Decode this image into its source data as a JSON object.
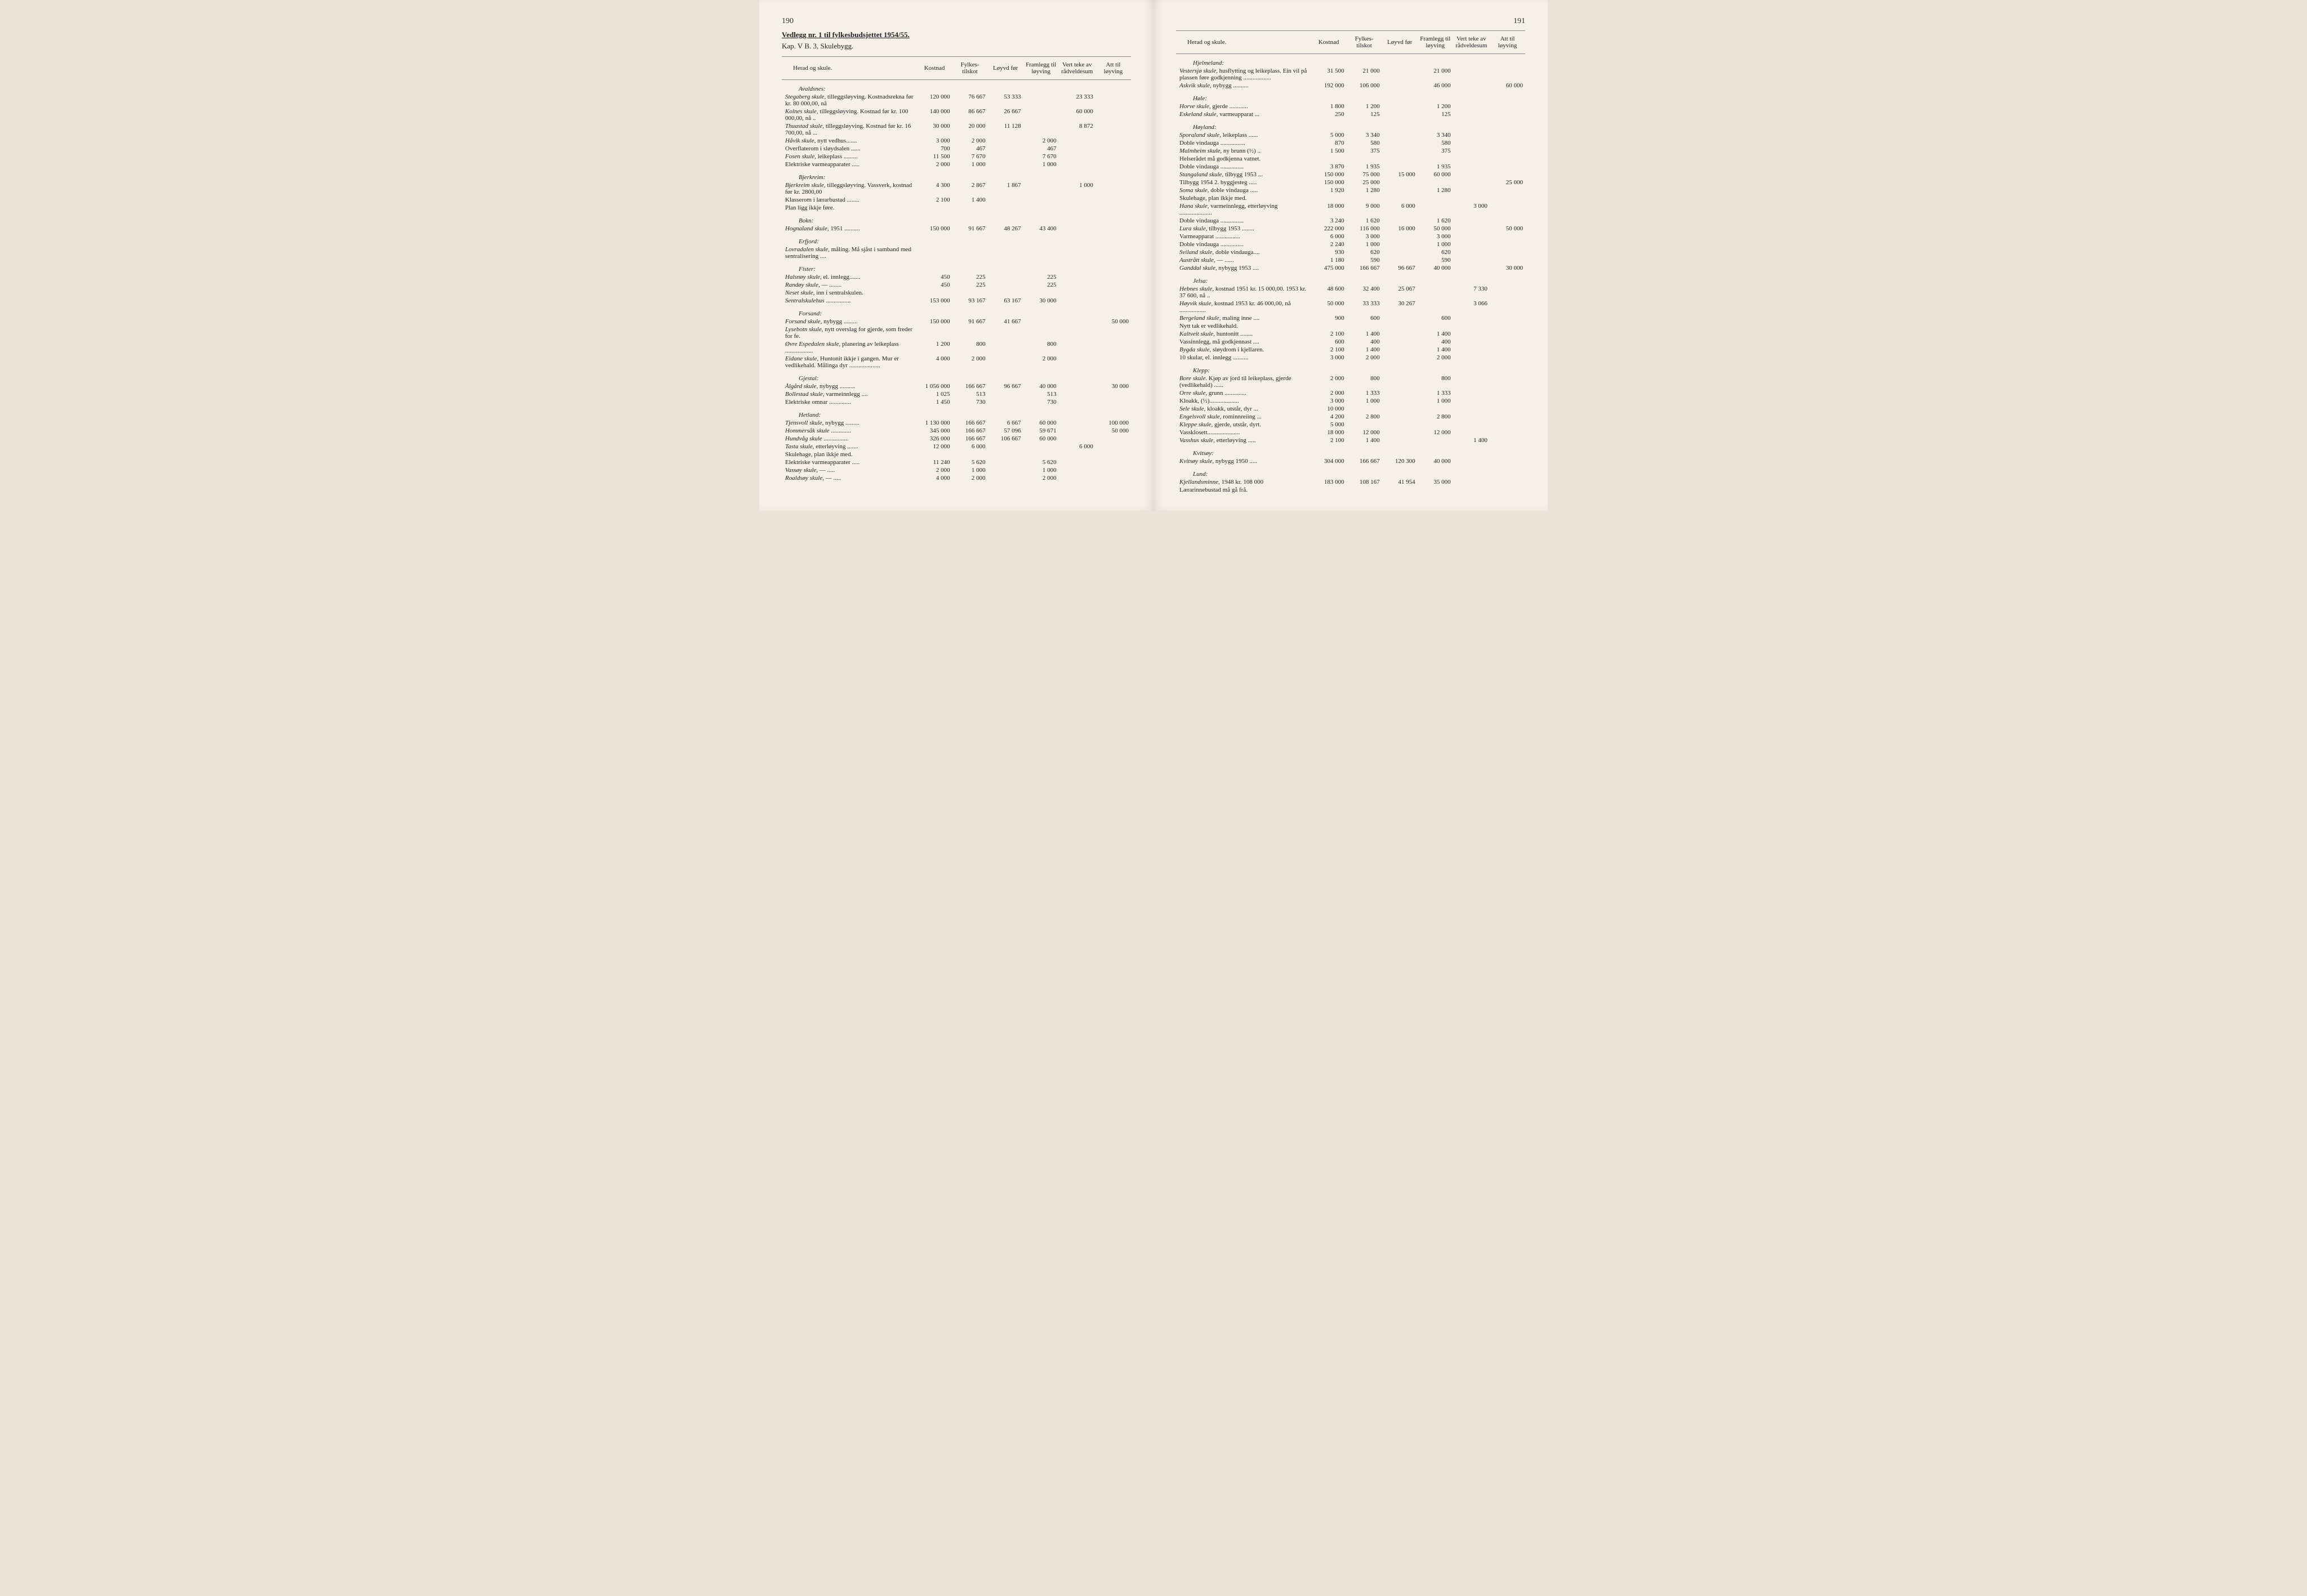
{
  "left": {
    "pageNumber": "190",
    "attachment": "Vedlegg nr. 1 til fylkesbudsjettet 1954/55.",
    "chapter": "Kap. V B. 3, Skulebygg.",
    "headers": [
      "Herad og skule.",
      "Kostnad",
      "Fylkes-\ntilskot",
      "Løyvd\nfør",
      "Framlegg\ntil løyving",
      "Vert teke av\nrådveldesum",
      "Att til\nløyving"
    ],
    "rows": [
      {
        "section": "Avaldsnes:"
      },
      {
        "desc": "Stegaberg skule, tilleggsløyving. Kostnadsrekna før kr. 80 000,00, nå",
        "italicPrefix": "Stegaberg skule,",
        "vals": [
          "120 000",
          "76 667",
          "53 333",
          "",
          "23 333",
          ""
        ]
      },
      {
        "desc": "Kolnes skule, tilleggsløyving. Kostnad før kr. 100 000,00, nå ..",
        "italicPrefix": "Kolnes skule,",
        "vals": [
          "140 000",
          "86 667",
          "26 667",
          "",
          "60 000",
          ""
        ]
      },
      {
        "desc": "Thuastad skule, tilleggsløyving. Kostnad før kr. 16 700,00, nå ...",
        "italicPrefix": "Thuastad skule,",
        "vals": [
          "30 000",
          "20 000",
          "11 128",
          "",
          "8 872",
          ""
        ]
      },
      {
        "desc": "Håvik skule, nytt vedhus.......",
        "italicPrefix": "Håvik skule,",
        "vals": [
          "3 000",
          "2 000",
          "",
          "2 000",
          "",
          ""
        ]
      },
      {
        "desc": "Overflaterom i sløydsalen ......",
        "vals": [
          "700",
          "467",
          "",
          "467",
          "",
          ""
        ]
      },
      {
        "desc": "Fosen skule, leikeplass .........",
        "italicPrefix": "Fosen skule,",
        "vals": [
          "11 500",
          "7 670",
          "",
          "7 670",
          "",
          ""
        ]
      },
      {
        "desc": "Elektriske varmeapparater .....",
        "vals": [
          "2 000",
          "1 000",
          "",
          "1 000",
          "",
          ""
        ]
      },
      {
        "section": "Bjerkreim:"
      },
      {
        "desc": "Bjerkreim skule, tilleggsløyving. Vassverk, kostnad før kr. 2800,00",
        "italicPrefix": "Bjerkreim skule,",
        "vals": [
          "4 300",
          "2 867",
          "1 867",
          "",
          "1 000",
          ""
        ]
      },
      {
        "desc": "Klasserom i lærarbustad ........",
        "vals": [
          "2 100",
          "1 400",
          "",
          "",
          "",
          ""
        ]
      },
      {
        "desc": "Plan ligg ikkje føre.",
        "vals": [
          "",
          "",
          "",
          "",
          "",
          ""
        ]
      },
      {
        "section": "Bokn:"
      },
      {
        "desc": "Hognaland skule, 1951 ..........",
        "italicPrefix": "Hognaland skule,",
        "vals": [
          "150 000",
          "91 667",
          "48 267",
          "43 400",
          "",
          ""
        ]
      },
      {
        "section": "Erfjord:"
      },
      {
        "desc": "Lovradalen skule, måling. Må sjåst i samband med sentralisering ....",
        "italicPrefix": "Lovradalen skule,",
        "vals": [
          "",
          "",
          "",
          "",
          "",
          ""
        ]
      },
      {
        "section": "Fister:"
      },
      {
        "desc": "Halsnøy skule, el. innlegg.......",
        "italicPrefix": "Halsnøy skule,",
        "vals": [
          "450",
          "225",
          "",
          "225",
          "",
          ""
        ]
      },
      {
        "desc": "Randøy skule,     —     ........",
        "italicPrefix": "Randøy skule,",
        "vals": [
          "450",
          "225",
          "",
          "225",
          "",
          ""
        ]
      },
      {
        "desc": "Neset skule, inn i sentralskulen.",
        "italicPrefix": "Neset skule,",
        "vals": [
          "",
          "",
          "",
          "",
          "",
          ""
        ]
      },
      {
        "desc": "Sentralskulehus ................",
        "italicPrefix": "Sentralskulehus",
        "vals": [
          "153 000",
          "93 167",
          "63 167",
          "30 000",
          "",
          ""
        ]
      },
      {
        "section": "Forsand:"
      },
      {
        "desc": "Forsand skule, nybygg .........",
        "italicPrefix": "Forsand skule,",
        "vals": [
          "150 000",
          "91 667",
          "41 667",
          "",
          "",
          "50 000"
        ]
      },
      {
        "desc": "Lysebotn skule, nytt overslag for gjerde, som freder for fe.",
        "italicPrefix": "Lysebotn skule,",
        "vals": [
          "",
          "",
          "",
          "",
          "",
          ""
        ]
      },
      {
        "desc": "Øvre Espedalen skule, planering av leikeplass ..................",
        "italicPrefix": "Øvre Espedalen skule,",
        "vals": [
          "1 200",
          "800",
          "",
          "800",
          "",
          ""
        ]
      },
      {
        "desc": "Eidane skule, Huntonit ikkje i gangen. Mur er vedlikehald. Målinga dyr ....................",
        "italicPrefix": "Eidane skule,",
        "vals": [
          "4 000",
          "2 000",
          "",
          "2 000",
          "",
          ""
        ]
      },
      {
        "section": "Gjestal:"
      },
      {
        "desc": "Ålgård skule, nybygg ..........",
        "italicPrefix": "Ålgård skule,",
        "vals": [
          "1 056 000",
          "166 667",
          "96 667",
          "40 000",
          "",
          "30 000"
        ]
      },
      {
        "desc": "Bollestad skule, varmeinnlegg ....",
        "italicPrefix": "Bollestad skule,",
        "vals": [
          "1 025",
          "513",
          "",
          "513",
          "",
          ""
        ]
      },
      {
        "desc": "Elektriske omnar ..............",
        "vals": [
          "1 450",
          "730",
          "",
          "730",
          "",
          ""
        ]
      },
      {
        "section": "Hetland:"
      },
      {
        "desc": "Tjensvoll skule, nybygg .........",
        "italicPrefix": "Tjensvoll skule,",
        "vals": [
          "1 130 000",
          "166 667",
          "6 667",
          "60 000",
          "",
          "100 000"
        ]
      },
      {
        "desc": "Hommersåk skule .............",
        "italicPrefix": "Hommersåk skule",
        "vals": [
          "345 000",
          "166 667",
          "57 096",
          "59 671",
          "",
          "50 000"
        ]
      },
      {
        "desc": "Hundvåg skule ................",
        "italicPrefix": "Hundvåg skule",
        "vals": [
          "326 000",
          "166 667",
          "106 667",
          "60 000",
          "",
          ""
        ]
      },
      {
        "desc": "Tasta skule, etterløyving .......",
        "italicPrefix": "Tasta skule,",
        "vals": [
          "12 000",
          "6 000",
          "",
          "",
          "6 000",
          ""
        ]
      },
      {
        "desc": "Skulehage, plan ikkje med.",
        "vals": [
          "",
          "",
          "",
          "",
          "",
          ""
        ]
      },
      {
        "desc": "Elektriske varmeapparater .....",
        "vals": [
          "11 240",
          "5 620",
          "",
          "5 620",
          "",
          ""
        ]
      },
      {
        "desc": "Vassøy skule,      —      .....",
        "italicPrefix": "Vassøy skule,",
        "vals": [
          "2 000",
          "1 000",
          "",
          "1 000",
          "",
          ""
        ]
      },
      {
        "desc": "Roaldsøy skule,    —      .....",
        "italicPrefix": "Roaldsøy skule,",
        "vals": [
          "4 000",
          "2 000",
          "",
          "2 000",
          "",
          ""
        ]
      }
    ]
  },
  "right": {
    "pageNumber": "191",
    "headers": [
      "Herad og skule.",
      "Kostnad",
      "Fylkes-\ntilskot",
      "Løyvd\nfør",
      "Framlegg\ntil løyving",
      "Vert teke av\nrådveldesum",
      "Att til\nløyving"
    ],
    "rows": [
      {
        "section": "Hjelmeland:"
      },
      {
        "desc": "Vestersjø skule, husflytting og leikeplass. Ein vil på plassen føre godkjenning ..................",
        "italicPrefix": "Vestersjø skule,",
        "vals": [
          "31 500",
          "21 000",
          "",
          "21 000",
          "",
          ""
        ]
      },
      {
        "desc": "Askvik skule, nybygg ..........",
        "italicPrefix": "Askvik skule,",
        "vals": [
          "192 000",
          "106 000",
          "",
          "46 000",
          "",
          "60 000"
        ]
      },
      {
        "section": "Høle:"
      },
      {
        "desc": "Horve skule, gjerde ............",
        "italicPrefix": "Horve skule,",
        "vals": [
          "1 800",
          "1 200",
          "",
          "1 200",
          "",
          ""
        ]
      },
      {
        "desc": "Eskeland skule, varmeapparat ...",
        "italicPrefix": "Eskeland skule,",
        "vals": [
          "250",
          "125",
          "",
          "125",
          "",
          ""
        ]
      },
      {
        "section": "Høyland:"
      },
      {
        "desc": "Sporaland skule, leikeplass ......",
        "italicPrefix": "Sporaland skule,",
        "vals": [
          "5 000",
          "3 340",
          "",
          "3 340",
          "",
          ""
        ]
      },
      {
        "desc": "Doble vindauga ................",
        "vals": [
          "870",
          "580",
          "",
          "580",
          "",
          ""
        ]
      },
      {
        "desc": "Malmheim skule, ny brunn (½) ..",
        "italicPrefix": "Malmheim skule,",
        "vals": [
          "1 500",
          "375",
          "",
          "375",
          "",
          ""
        ]
      },
      {
        "desc": "Helserådet må godkjenna vatnet.",
        "vals": [
          "",
          "",
          "",
          "",
          "",
          ""
        ]
      },
      {
        "desc": "Doble vindauga ...............",
        "vals": [
          "3 870",
          "1 935",
          "",
          "1 935",
          "",
          ""
        ]
      },
      {
        "desc": "Stangaland skule, tilbygg 1953 ...",
        "italicPrefix": "Stangaland skule,",
        "vals": [
          "150 000",
          "75 000",
          "15 000",
          "60 000",
          "",
          ""
        ]
      },
      {
        "desc": "Tilbygg 1954 2. byggjesteg .....",
        "vals": [
          "150 000",
          "25 000",
          "",
          "",
          "",
          "25 000"
        ]
      },
      {
        "desc": "Soma skule, doble vindauga .....",
        "italicPrefix": "Soma skule,",
        "vals": [
          "1 920",
          "1 280",
          "",
          "1 280",
          "",
          ""
        ]
      },
      {
        "desc": "Skulehage, plan ikkje med.",
        "vals": [
          "",
          "",
          "",
          "",
          "",
          ""
        ]
      },
      {
        "desc": "Hana skule, varmeinnlegg, etterløyving .....................",
        "italicPrefix": "Hana skule,",
        "vals": [
          "18 000",
          "9 000",
          "6 000",
          "",
          "3 000",
          ""
        ]
      },
      {
        "desc": "Doble vindauga ...............",
        "vals": [
          "3 240",
          "1 620",
          "",
          "1 620",
          "",
          ""
        ]
      },
      {
        "desc": "Lura skule, tilbygg 1953 ........",
        "italicPrefix": "Lura skule,",
        "vals": [
          "222 000",
          "116 000",
          "16 000",
          "50 000",
          "",
          "50 000"
        ]
      },
      {
        "desc": "Varmeapparat ................",
        "vals": [
          "6 000",
          "3 000",
          "",
          "3 000",
          "",
          ""
        ]
      },
      {
        "desc": "Doble vindauga ...............",
        "vals": [
          "2 240",
          "1 000",
          "",
          "1 000",
          "",
          ""
        ]
      },
      {
        "desc": "Sviland skule, doble vindauga....",
        "italicPrefix": "Sviland skule,",
        "vals": [
          "930",
          "620",
          "",
          "620",
          "",
          ""
        ]
      },
      {
        "desc": "Austrått skule,     —     ......",
        "italicPrefix": "Austrått skule,",
        "vals": [
          "1 180",
          "590",
          "",
          "590",
          "",
          ""
        ]
      },
      {
        "desc": "Ganddal skule, nybygg 1953 ....",
        "italicPrefix": "Ganddal skule,",
        "vals": [
          "475 000",
          "166 667",
          "96 667",
          "40 000",
          "",
          "30 000"
        ]
      },
      {
        "section": "Jelsa:"
      },
      {
        "desc": "Hebnes skule, kostnad 1951 kr. 15 000,00. 1953 kr. 37 600, nå ..",
        "italicPrefix": "Hebnes skule,",
        "vals": [
          "48 600",
          "32 400",
          "25 067",
          "",
          "7 330",
          ""
        ]
      },
      {
        "desc": "Høyvik skule, kostnad 1953 kr. 46 000,00, nå .................",
        "italicPrefix": "Høyvik skule,",
        "vals": [
          "50 000",
          "33 333",
          "30 267",
          "",
          "3 066",
          ""
        ]
      },
      {
        "desc": "Bergeland skule, maling inne ....",
        "italicPrefix": "Bergeland skule,",
        "vals": [
          "900",
          "600",
          "",
          "600",
          "",
          ""
        ]
      },
      {
        "desc": "Nytt tak er vedlikehald.",
        "vals": [
          "",
          "",
          "",
          "",
          "",
          ""
        ]
      },
      {
        "desc": "Kaltveit skule, huntonitt ........",
        "italicPrefix": "Kaltveit skule,",
        "vals": [
          "2 100",
          "1 400",
          "",
          "1 400",
          "",
          ""
        ]
      },
      {
        "desc": "Vassinnlegg, må godkjennast ....",
        "vals": [
          "600",
          "400",
          "",
          "400",
          "",
          ""
        ]
      },
      {
        "desc": "Bygda skule, sløydrom i kjellaren.",
        "italicPrefix": "Bygda skule,",
        "vals": [
          "2 100",
          "1 400",
          "",
          "1 400",
          "",
          ""
        ]
      },
      {
        "desc": "10 skular, el. innlegg ..........",
        "vals": [
          "3 000",
          "2 000",
          "",
          "2 000",
          "",
          ""
        ]
      },
      {
        "section": "Klepp:"
      },
      {
        "desc": "Bore skule. Kjøp av jord til leikeplass, gjerde (vedlikehald) ......",
        "italicPrefix": "Bore skule.",
        "vals": [
          "2 000",
          "800",
          "",
          "800",
          "",
          ""
        ]
      },
      {
        "desc": "Orre skule, grunn ..............",
        "italicPrefix": "Orre skule,",
        "vals": [
          "2 000",
          "1 333",
          "",
          "1 333",
          "",
          ""
        ]
      },
      {
        "desc": "Kloakk, (½)...................",
        "vals": [
          "3 000",
          "1 000",
          "",
          "1 000",
          "",
          ""
        ]
      },
      {
        "desc": "Sele skule, kloakk, utstår, dyr ...",
        "italicPrefix": "Sele skule,",
        "vals": [
          "10 000",
          "",
          "",
          "",
          "",
          ""
        ]
      },
      {
        "desc": "Engelsvoll skule, rominnreiing ...",
        "italicPrefix": "Engelsvoll skule,",
        "vals": [
          "4 200",
          "2 800",
          "",
          "2 800",
          "",
          ""
        ]
      },
      {
        "desc": "Kleppe skule, gjerde, utstår, dyrt.",
        "italicPrefix": "Kleppe skule,",
        "vals": [
          "5 000",
          "",
          "",
          "",
          "",
          ""
        ]
      },
      {
        "desc": "Vassklosett.....................",
        "vals": [
          "18 000",
          "12 000",
          "",
          "12 000",
          "",
          ""
        ]
      },
      {
        "desc": "Vasshus skule, etterløyving .....",
        "italicPrefix": "Vasshus skule,",
        "vals": [
          "2 100",
          "1 400",
          "",
          "",
          "1 400",
          ""
        ]
      },
      {
        "section": "Kvitsøy:"
      },
      {
        "desc": "Kvitsøy skule, nybygg 1950 .....",
        "italicPrefix": "Kvitsøy skule,",
        "vals": [
          "304 000",
          "166 667",
          "120 300",
          "40 000",
          "",
          ""
        ]
      },
      {
        "section": "Lund:"
      },
      {
        "desc": "Kjellandsminne, 1948 kr. 108 000",
        "italicPrefix": "Kjellandsminne,",
        "vals": [
          "183 000",
          "108 167",
          "41 954",
          "35 000",
          "",
          ""
        ]
      },
      {
        "desc": "Lærarinnebustad må gå frå.",
        "vals": [
          "",
          "",
          "",
          "",
          "",
          ""
        ]
      }
    ]
  }
}
